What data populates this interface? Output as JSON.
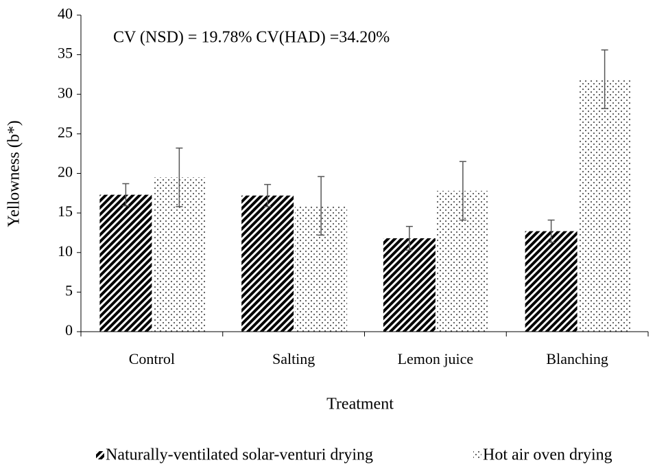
{
  "chart_data": {
    "type": "bar",
    "annotation": "CV (NSD) = 19.78% CV(HAD) =34.20%",
    "ylabel": "Yellowness (b*)",
    "xlabel": "Treatment",
    "categories": [
      "Control",
      "Salting",
      "Lemon juice",
      "Blanching"
    ],
    "series": [
      {
        "name": "Naturally-ventilated solar-venturi drying",
        "color": "#000000",
        "pattern": "hatch",
        "values": [
          17.3,
          17.2,
          11.8,
          12.7
        ],
        "errors": [
          1.4,
          1.4,
          1.5,
          1.4
        ]
      },
      {
        "name": "Hot air oven drying",
        "color": "#000000",
        "pattern": "dots",
        "values": [
          19.5,
          15.9,
          17.8,
          31.9
        ],
        "errors": [
          3.7,
          3.7,
          3.7,
          3.7
        ]
      }
    ],
    "ylim": [
      0,
      40
    ],
    "yticks": [
      0,
      5,
      10,
      15,
      20,
      25,
      30,
      35,
      40
    ],
    "grid": false,
    "legend": "bottom"
  }
}
